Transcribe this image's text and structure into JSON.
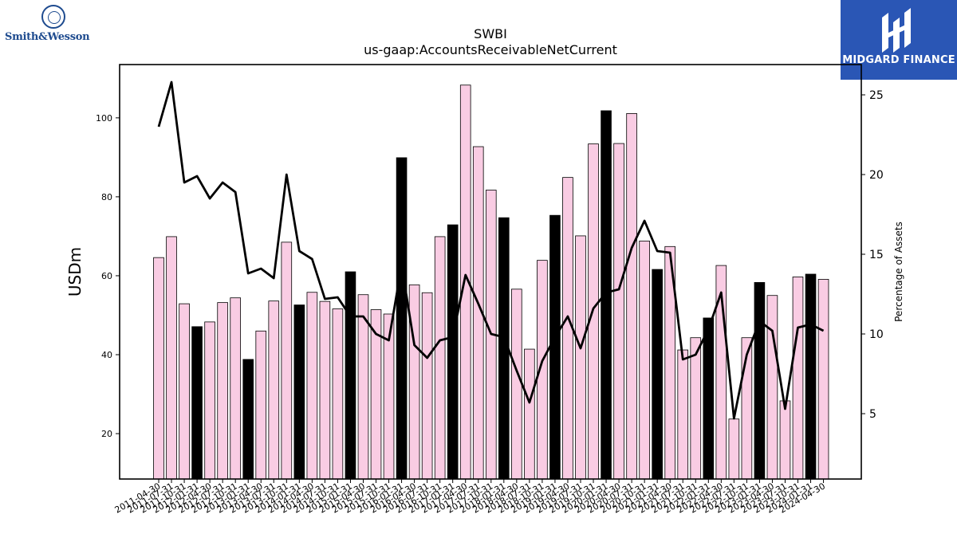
{
  "branding": {
    "left_logo_text": "Smith&Wesson",
    "right_logo_text": "MIDGARD FINANCE"
  },
  "colors": {
    "bar_pink": "#f9cce3",
    "bar_black": "#000000",
    "line": "#000000",
    "brand_blue": "#2a56b5",
    "sw_blue": "#1e4b8f"
  },
  "chart_data": {
    "type": "bar",
    "title": "SWBI",
    "subtitle": "us-gaap:AccountsReceivableNetCurrent",
    "ylabel": "USDm",
    "y2label": "Percentage of Assets",
    "ylim": [
      8.5,
      113.5
    ],
    "y2lim": [
      0.9,
      26.9
    ],
    "yticks": [
      20,
      40,
      60,
      80,
      100
    ],
    "y2ticks": [
      5,
      10,
      15,
      20,
      25
    ],
    "grid": false,
    "categories": [
      "2011-04-30",
      "2011-07-31",
      "2011-10-31",
      "2012-01-31",
      "2012-04-30",
      "2012-07-31",
      "2012-10-31",
      "2013-01-31",
      "2013-04-30",
      "2013-07-31",
      "2013-10-31",
      "2014-01-31",
      "2014-04-30",
      "2014-07-31",
      "2014-10-31",
      "2015-01-31",
      "2015-04-30",
      "2015-07-31",
      "2015-10-31",
      "2016-01-31",
      "2016-04-30",
      "2016-07-31",
      "2016-10-31",
      "2017-01-31",
      "2017-04-30",
      "2017-07-31",
      "2017-10-31",
      "2018-01-31",
      "2018-04-30",
      "2018-07-31",
      "2018-10-31",
      "2019-01-31",
      "2019-04-30",
      "2019-07-31",
      "2019-10-31",
      "2020-01-31",
      "2020-04-30",
      "2020-07-31",
      "2020-10-31",
      "2021-01-31",
      "2021-04-30",
      "2021-07-31",
      "2021-10-31",
      "2022-01-31",
      "2022-04-30",
      "2022-07-31",
      "2022-10-31",
      "2023-01-31",
      "2023-04-30",
      "2023-07-31",
      "2023-10-31",
      "2024-01-31",
      "2024-04-30"
    ],
    "visible_tick_labels": [
      "2011-04-30",
      "2011-07-31",
      "2011-10-31",
      "2012-01-31",
      "2012-04-30",
      "2012-07-31",
      "2012-10-31",
      "2013-01-31",
      "2013-04-30",
      "2013-07-31",
      "2013-10-31",
      "2014-01-31",
      "2014-04-30",
      "2014-07-31",
      "2014-10-31",
      "2015-01-31",
      "2015-04-30",
      "2015-07-31",
      "2015-10-31",
      "2016-01-31",
      "2016-04-30",
      "2016-07-31",
      "2016-10-31",
      "2017-01-31",
      "2017-04-30",
      "2017-07-31",
      "2017-10-31",
      "2018-01-31",
      "2018-04-30",
      "2018-07-31",
      "2018-10-31",
      "2019-01-31",
      "2019-04-30",
      "2019-07-31",
      "2019-10-31",
      "2020-01-31",
      "2020-04-30",
      "2020-07-31",
      "2020-10-31",
      "2021-01-31",
      "2021-04-30",
      "2021-07-31",
      "2021-10-31",
      "2022-01-31",
      "2022-04-30",
      "2022-07-31",
      "2022-10-31",
      "2023-01-31",
      "2023-04-30",
      "2023-07-31",
      "2023-10-31",
      "2024-01-31",
      "2024-04-30"
    ],
    "series": [
      {
        "type": "bar",
        "axis": "left",
        "values": [
          64.6,
          69.9,
          52.9,
          47.1,
          48.3,
          53.2,
          54.4,
          38.8,
          46.0,
          53.6,
          68.5,
          52.6,
          55.8,
          53.5,
          51.6,
          61.0,
          55.2,
          51.4,
          50.3,
          89.9,
          57.7,
          55.7,
          69.9,
          72.9,
          108.3,
          92.7,
          81.7,
          74.7,
          56.6,
          41.4,
          63.9,
          75.3,
          84.9,
          70.1,
          93.4,
          101.8,
          93.5,
          101.1,
          68.8,
          61.6,
          67.4,
          41.2,
          44.3,
          49.3,
          62.6,
          23.7,
          44.3,
          58.3,
          55.0,
          28.3,
          59.7,
          60.4,
          59.1
        ],
        "highlight": [
          false,
          false,
          false,
          true,
          false,
          false,
          false,
          true,
          false,
          false,
          false,
          true,
          false,
          false,
          false,
          true,
          false,
          false,
          false,
          true,
          false,
          false,
          false,
          true,
          false,
          false,
          false,
          true,
          false,
          false,
          false,
          true,
          false,
          false,
          false,
          true,
          false,
          false,
          false,
          true,
          false,
          false,
          false,
          true,
          false,
          false,
          false,
          true,
          false,
          false,
          false,
          true,
          false
        ]
      },
      {
        "type": "line",
        "axis": "right",
        "values": [
          23.0,
          25.8,
          19.5,
          19.9,
          18.5,
          19.5,
          18.9,
          13.8,
          14.1,
          13.5,
          20.0,
          15.2,
          14.7,
          12.2,
          12.3,
          11.1,
          11.1,
          10.0,
          9.6,
          14.3,
          9.3,
          8.5,
          9.6,
          9.8,
          13.7,
          11.9,
          10.0,
          9.8,
          7.7,
          5.7,
          8.3,
          9.8,
          11.1,
          9.1,
          11.6,
          12.6,
          12.8,
          15.4,
          17.1,
          15.2,
          15.1,
          8.4,
          8.7,
          10.3,
          12.6,
          4.7,
          8.7,
          10.8,
          10.2,
          5.3,
          10.4,
          10.6,
          10.2
        ]
      }
    ]
  }
}
